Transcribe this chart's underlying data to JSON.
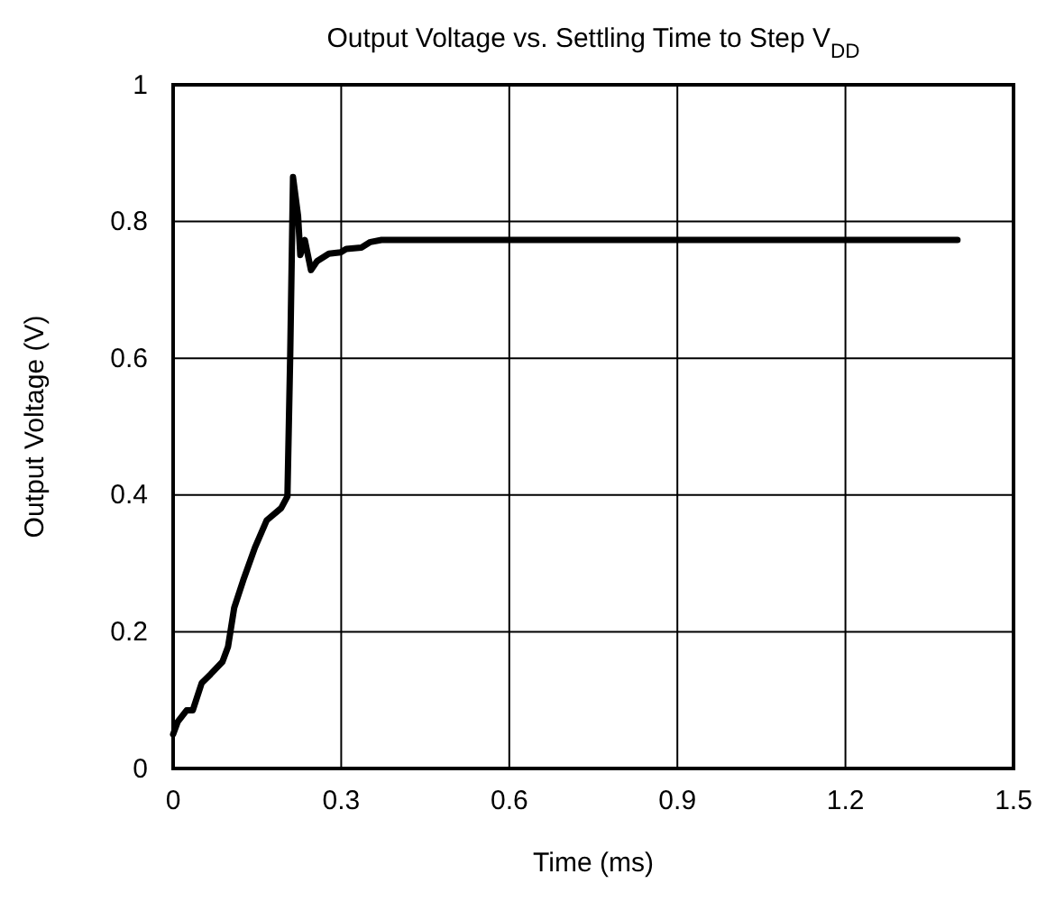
{
  "chart_data": {
    "type": "line",
    "title": "Output Voltage vs. Settling Time to Step V$_{DD}$",
    "xlabel": "Time (ms)",
    "ylabel": "Output Voltage (V)",
    "series": [
      {
        "color": "#000000",
        "x": [
          0,
          0.008,
          0.024,
          0.035,
          0.051,
          0.067,
          0.088,
          0.098,
          0.109,
          0.125,
          0.146,
          0.167,
          0.193,
          0.204,
          0.209,
          0.214,
          0.223,
          0.227,
          0.235,
          0.246,
          0.257,
          0.278,
          0.299,
          0.309,
          0.336,
          0.352,
          0.372,
          1.4
        ],
        "values": [
          0.05,
          0.068,
          0.085,
          0.085,
          0.125,
          0.138,
          0.156,
          0.178,
          0.235,
          0.275,
          0.323,
          0.363,
          0.381,
          0.398,
          0.605,
          0.865,
          0.808,
          0.751,
          0.773,
          0.729,
          0.742,
          0.753,
          0.755,
          0.76,
          0.762,
          0.77,
          0.773,
          0.773
        ]
      }
    ],
    "xlim": [
      0,
      1.5
    ],
    "xticks": [
      0,
      0.3,
      0.6,
      0.9,
      1.2,
      1.5
    ],
    "ylim": [
      0,
      1
    ],
    "yticks": [
      0,
      0.2,
      0.4,
      0.6,
      0.8,
      1
    ],
    "grid": true,
    "marker": "none",
    "line_style": "solid"
  }
}
